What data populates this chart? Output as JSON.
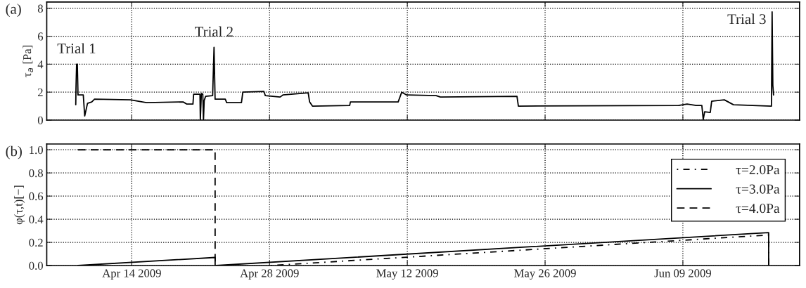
{
  "chart_data": [
    {
      "type": "line",
      "title": "(a)",
      "ylabel": "τ$_{a}$ [Pa]",
      "grid": true,
      "tick_labels": "y",
      "line_style": "solid",
      "xlim": [
        "2009-04-05T08:35",
        "2009-06-20T20:35"
      ],
      "ylim": [
        0,
        8.45
      ],
      "yticks": [
        0,
        2,
        4,
        6,
        8
      ],
      "xticks": [
        {
          "value": "2009-04-14",
          "label": null
        },
        {
          "value": "2009-04-28",
          "label": null
        },
        {
          "value": "2009-05-12",
          "label": null
        },
        {
          "value": "2009-05-26",
          "label": null
        },
        {
          "value": "2009-06-09",
          "label": null
        }
      ],
      "annotations": [
        {
          "text": "Trial 1",
          "x": "2009-04-08T09:25",
          "y": 4.0
        },
        {
          "text": "Trial 2",
          "x": "2009-04-22T08:35",
          "y": 5.2
        },
        {
          "text": "Trial 3",
          "x": "2009-06-18T01:40",
          "y": 7.75
        }
      ],
      "x": [
        "2009-04-08T07:20",
        "2009-04-08T07:55",
        "2009-04-08T09:25",
        "2009-04-08T11:10",
        "2009-04-08T12:50",
        "2009-04-09T01:40",
        "2009-04-09T05:10",
        "2009-04-09T12:00",
        "2009-04-09T22:20",
        "2009-04-10T05:10",
        "2009-04-13T20:35",
        "2009-04-15T12:00",
        "2009-04-19T05:10",
        "2009-04-19T13:40",
        "2009-04-20T05:10",
        "2009-04-20T06:50",
        "2009-04-20T22:15",
        "2009-04-20T23:10",
        "2009-04-21T01:40",
        "2009-04-21T05:10",
        "2009-04-21T06:50",
        "2009-04-21T08:35",
        "2009-04-21T12:00",
        "2009-04-22T05:10",
        "2009-04-22T08:35",
        "2009-04-22T11:10",
        "2009-04-23T12:00",
        "2009-04-23T15:25",
        "2009-04-25T03:25",
        "2009-04-25T06:50",
        "2009-04-27T10:15",
        "2009-04-27T13:40",
        "2009-04-29T01:40",
        "2009-04-29T08:35",
        "2009-05-01T22:15",
        "2009-05-02T01:40",
        "2009-05-02T08:35",
        "2009-05-06T03:25",
        "2009-05-06T05:10",
        "2009-05-11T01:40",
        "2009-05-11T10:15",
        "2009-05-11T22:15",
        "2009-05-14T22:15",
        "2009-05-15T08:35",
        "2009-05-23T03:25",
        "2009-05-23T06:50",
        "2009-06-08T13:40",
        "2009-06-09T10:15",
        "2009-06-10T08:35",
        "2009-06-10T22:15",
        "2009-06-11T01:40",
        "2009-06-11T05:10",
        "2009-06-11T18:50",
        "2009-06-11T22:15",
        "2009-06-13T05:10",
        "2009-06-14T03:25",
        "2009-06-18T00:00",
        "2009-06-18T01:40",
        "2009-06-18T03:25",
        "2009-06-18T05:10"
      ],
      "series": [
        {
          "color": "#000000",
          "values": [
            1.1,
            2.3,
            4.0,
            4.0,
            1.8,
            1.8,
            0.3,
            1.2,
            1.3,
            1.5,
            1.45,
            1.25,
            1.3,
            1.15,
            1.15,
            1.85,
            1.85,
            0,
            1.9,
            1.85,
            0,
            1.4,
            1.7,
            1.75,
            5.2,
            1.5,
            1.5,
            1.25,
            1.25,
            2.0,
            2.05,
            1.75,
            1.65,
            1.8,
            1.95,
            1.3,
            1.0,
            1.05,
            1.3,
            1.3,
            2.0,
            1.8,
            1.75,
            1.65,
            1.7,
            1.0,
            1.05,
            1.15,
            1.05,
            1.05,
            0.05,
            0.6,
            0.55,
            1.35,
            1.45,
            1.1,
            1.0,
            7.75,
            2.5,
            1.8
          ]
        }
      ]
    },
    {
      "type": "line",
      "title": "(b)",
      "ylabel": "φ(τ,t)[−]",
      "grid": true,
      "legend": "right",
      "xlim": [
        "2009-04-05T08:35",
        "2009-06-20T20:35"
      ],
      "ylim": [
        0,
        1.05
      ],
      "yticks": [
        {
          "value": 0,
          "label": "0.0"
        },
        {
          "value": 0.2,
          "label": "0.2"
        },
        {
          "value": 0.4,
          "label": "0.4"
        },
        {
          "value": 0.6,
          "label": "0.6"
        },
        {
          "value": 0.8,
          "label": "0.8"
        },
        {
          "value": 1,
          "label": "1.0"
        }
      ],
      "xticks": [
        {
          "value": "2009-04-14",
          "label": "Apr 14 2009"
        },
        {
          "value": "2009-04-28",
          "label": "Apr 28 2009"
        },
        {
          "value": "2009-05-12",
          "label": "May 12 2009"
        },
        {
          "value": "2009-05-26",
          "label": "May 26 2009"
        },
        {
          "value": "2009-06-09",
          "label": "Jun 09 2009"
        }
      ],
      "series": [
        {
          "name": "τ=2.0Pa",
          "color": "#000000",
          "line_style": "dashdot",
          "x": [
            "2009-04-28T03:25",
            "2009-06-17T17:10",
            "2009-06-17T17:15"
          ],
          "values": [
            0,
            0.264,
            0
          ]
        },
        {
          "name": "τ=3.0Pa",
          "color": "#000000",
          "line_style": "solid",
          "x": [
            "2009-04-08T12:50",
            "2009-04-22T11:10",
            "2009-04-22T11:15",
            "2009-04-22T13:40",
            "2009-06-17T17:10",
            "2009-06-17T17:15"
          ],
          "values": [
            0,
            0.07,
            0,
            0,
            0.285,
            0
          ]
        },
        {
          "name": "τ=4.0Pa",
          "color": "#000000",
          "line_style": "dashed",
          "x": [
            "2009-04-08T12:50",
            "2009-04-22T11:10",
            "2009-04-22T11:15"
          ],
          "values": [
            1.0,
            1.0,
            0
          ]
        }
      ]
    }
  ]
}
